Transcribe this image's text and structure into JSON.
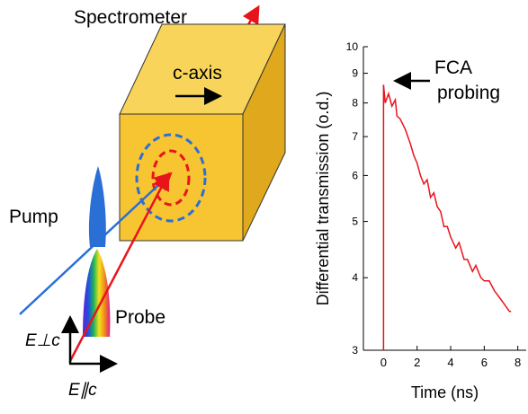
{
  "diagram": {
    "labels": {
      "spectrometer": "Spectrometer",
      "c_axis": "c-axis",
      "pump": "Pump",
      "probe": "Probe",
      "e_perp": "E⊥c",
      "e_par": "E∥c"
    }
  },
  "chart_data": {
    "type": "line",
    "ylabel": "Differential transmission (o.d.)",
    "xlabel": "Time (ns)",
    "annotation": [
      "FCA",
      "probing"
    ],
    "log_y": true,
    "xlim": [
      -1.2,
      8.5
    ],
    "xticks": [
      0,
      2,
      4,
      6,
      8
    ],
    "ylim": [
      3,
      10
    ],
    "yticks": [
      3,
      4,
      5,
      6,
      7,
      8,
      9,
      10
    ],
    "series": [
      {
        "color": "#e8141b",
        "x": [
          0,
          0,
          0.1,
          0.3,
          0.5,
          0.7,
          0.8,
          1,
          1.3,
          1.6,
          1.8,
          2,
          2.2,
          2.4,
          2.6,
          2.8,
          3,
          3.2,
          3.4,
          3.6,
          3.8,
          4,
          4.3,
          4.5,
          4.8,
          5,
          5.3,
          5.5,
          5.8,
          6,
          6.3,
          6.6,
          6.9,
          7.2,
          7.5,
          7.6
        ],
        "values": [
          3,
          8.6,
          8.0,
          8.3,
          7.9,
          8.1,
          7.6,
          7.5,
          7.2,
          6.8,
          6.5,
          6.3,
          6.0,
          5.8,
          5.9,
          5.5,
          5.6,
          5.3,
          5.2,
          4.9,
          4.9,
          4.7,
          4.5,
          4.6,
          4.3,
          4.3,
          4.1,
          4.2,
          4.0,
          3.95,
          3.95,
          3.8,
          3.7,
          3.6,
          3.5,
          3.5
        ]
      }
    ]
  }
}
